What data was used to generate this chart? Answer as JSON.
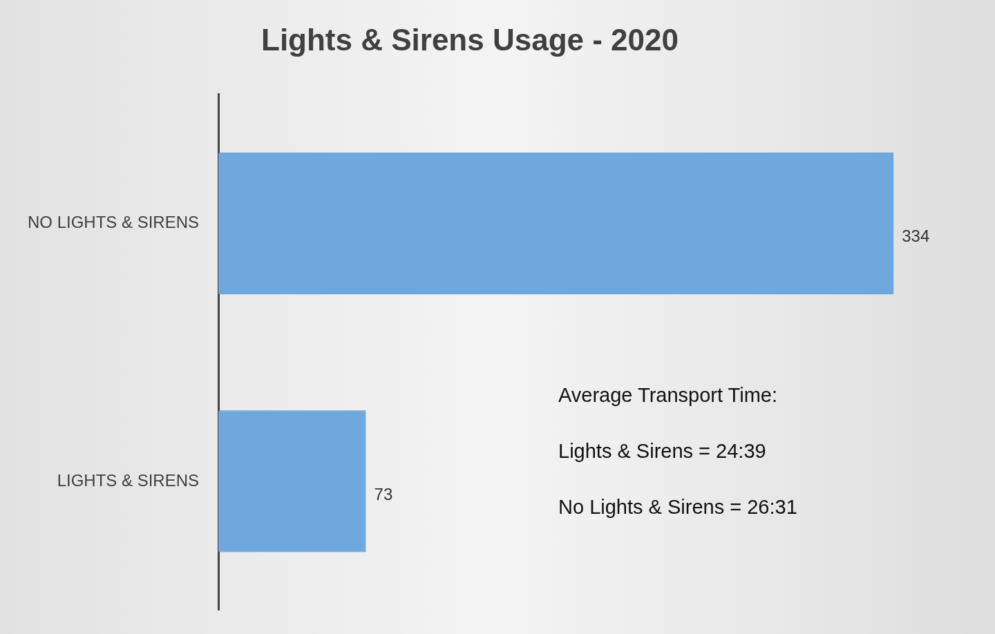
{
  "chart_data": {
    "type": "bar",
    "orientation": "horizontal",
    "title": "Lights & Sirens Usage - 2020",
    "categories": [
      "NO LIGHTS & SIRENS",
      "LIGHTS & SIRENS"
    ],
    "values": [
      334,
      73
    ],
    "color": "#6fa8dc",
    "data_labels": true,
    "annotations": [
      "Average Transport Time:",
      "Lights & Sirens = 24:39",
      "No Lights & Sirens = 26:31"
    ]
  }
}
